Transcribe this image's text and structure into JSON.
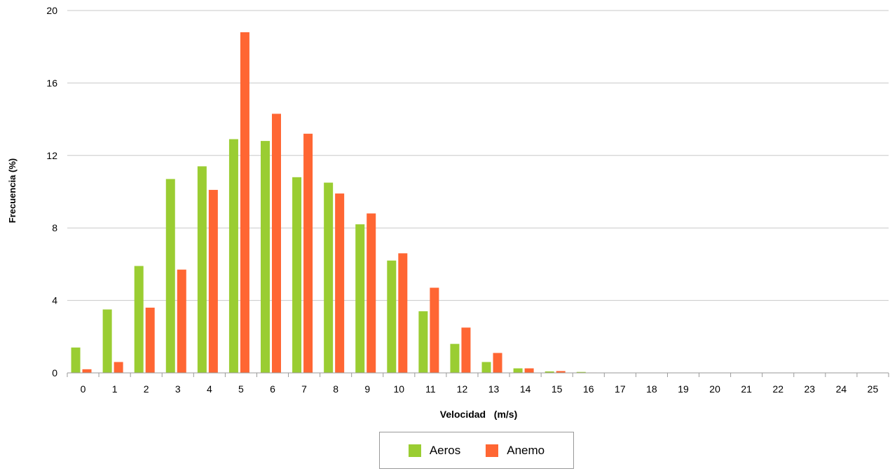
{
  "chart_data": {
    "type": "bar",
    "title": "",
    "xlabel": "Velocidad   (m/s)",
    "ylabel": "Frecuencia (%)",
    "ylim": [
      0,
      20
    ],
    "yticks": [
      "0",
      "4",
      "8",
      "12",
      "16",
      "20"
    ],
    "categories": [
      "0",
      "1",
      "2",
      "3",
      "4",
      "5",
      "6",
      "7",
      "8",
      "9",
      "10",
      "11",
      "12",
      "13",
      "14",
      "15",
      "16",
      "17",
      "18",
      "19",
      "20",
      "21",
      "22",
      "23",
      "24",
      "25"
    ],
    "series": [
      {
        "name": "Aeros",
        "color": "#9ACD32",
        "values": [
          1.4,
          3.5,
          5.9,
          10.7,
          11.4,
          12.9,
          12.8,
          10.8,
          10.5,
          8.2,
          6.2,
          3.4,
          1.6,
          0.6,
          0.25,
          0.08,
          0.05,
          0,
          0,
          0,
          0,
          0,
          0,
          0,
          0,
          0
        ]
      },
      {
        "name": "Anemo",
        "color": "#FF6633",
        "values": [
          0.2,
          0.6,
          3.6,
          5.7,
          10.1,
          18.8,
          14.3,
          13.2,
          9.9,
          8.8,
          6.6,
          4.7,
          2.5,
          1.1,
          0.25,
          0.1,
          0.02,
          0,
          0,
          0,
          0,
          0,
          0,
          0,
          0,
          0
        ]
      }
    ],
    "grid": true,
    "legend_position": "bottom"
  }
}
